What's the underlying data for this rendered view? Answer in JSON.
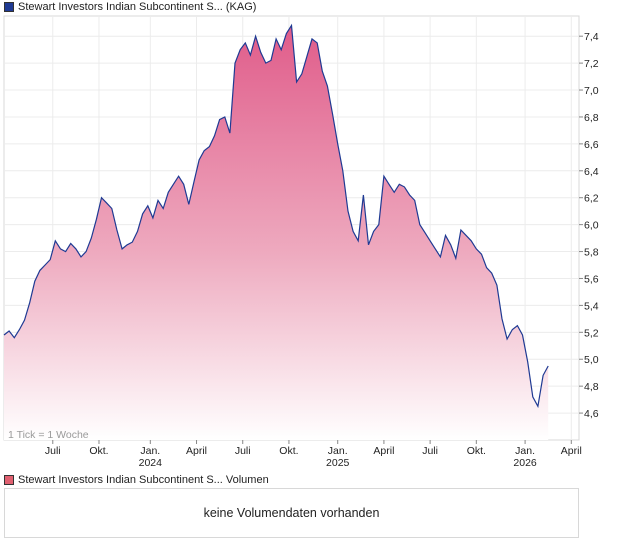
{
  "price_legend": {
    "label": "Stewart Investors Indian Subcontinent S... (KAG)",
    "color": "#1f3a93"
  },
  "volume_legend": {
    "label": "Stewart Investors Indian Subcontinent S... Volumen",
    "color": "#e06070"
  },
  "volume_panel": {
    "message": "keine Volumendaten vorhanden"
  },
  "tick_note": "1 Tick = 1 Woche",
  "chart_data": {
    "type": "area",
    "title": "Stewart Investors Indian Subcontinent S... (KAG)",
    "series_name": "Stewart Investors Indian Subcontinent S...",
    "interval": "weekly",
    "ylim": [
      4.4,
      7.55
    ],
    "y_ticks": [
      4.6,
      4.8,
      5.0,
      5.2,
      5.4,
      5.6,
      5.8,
      6.0,
      6.2,
      6.4,
      6.6,
      6.8,
      7.0,
      7.2,
      7.4
    ],
    "y_tick_labels": [
      "4,6",
      "4,8",
      "5,0",
      "5,2",
      "5,4",
      "5,6",
      "5,8",
      "6,0",
      "6,2",
      "6,4",
      "6,6",
      "6,8",
      "7,0",
      "7,2",
      "7,4"
    ],
    "x_ticks": [
      {
        "week": 9.5,
        "label": "Juli",
        "year": ""
      },
      {
        "week": 18.5,
        "label": "Okt.",
        "year": ""
      },
      {
        "week": 28.5,
        "label": "Jan.",
        "year": "2024"
      },
      {
        "week": 37.5,
        "label": "April",
        "year": ""
      },
      {
        "week": 46.5,
        "label": "Juli",
        "year": ""
      },
      {
        "week": 55.5,
        "label": "Okt.",
        "year": ""
      },
      {
        "week": 65,
        "label": "Jan.",
        "year": "2025"
      },
      {
        "week": 74,
        "label": "April",
        "year": ""
      },
      {
        "week": 83,
        "label": "Juli",
        "year": ""
      },
      {
        "week": 92,
        "label": "Okt.",
        "year": ""
      },
      {
        "week": 101.5,
        "label": "Jan.",
        "year": "2026"
      },
      {
        "week": 110.5,
        "label": "April",
        "year": ""
      }
    ],
    "x_range": [
      0,
      112
    ],
    "values": [
      5.18,
      5.21,
      5.16,
      5.22,
      5.29,
      5.42,
      5.58,
      5.66,
      5.7,
      5.74,
      5.88,
      5.82,
      5.8,
      5.86,
      5.82,
      5.76,
      5.8,
      5.9,
      6.04,
      6.2,
      6.16,
      6.12,
      5.96,
      5.82,
      5.85,
      5.87,
      5.95,
      6.08,
      6.14,
      6.05,
      6.18,
      6.12,
      6.24,
      6.3,
      6.36,
      6.3,
      6.15,
      6.32,
      6.48,
      6.55,
      6.58,
      6.66,
      6.78,
      6.8,
      6.68,
      7.2,
      7.3,
      7.35,
      7.26,
      7.4,
      7.28,
      7.2,
      7.22,
      7.38,
      7.3,
      7.42,
      7.48,
      7.06,
      7.12,
      7.25,
      7.38,
      7.35,
      7.14,
      7.03,
      6.82,
      6.6,
      6.4,
      6.1,
      5.95,
      5.88,
      6.22,
      5.85,
      5.95,
      6.0,
      6.36,
      6.3,
      6.24,
      6.3,
      6.28,
      6.22,
      6.18,
      6.0,
      5.94,
      5.88,
      5.82,
      5.76,
      5.92,
      5.85,
      5.75,
      5.96,
      5.92,
      5.88,
      5.82,
      5.78,
      5.68,
      5.64,
      5.55,
      5.3,
      5.15,
      5.22,
      5.25,
      5.18,
      4.98,
      4.72,
      4.65,
      4.88,
      4.95
    ]
  }
}
